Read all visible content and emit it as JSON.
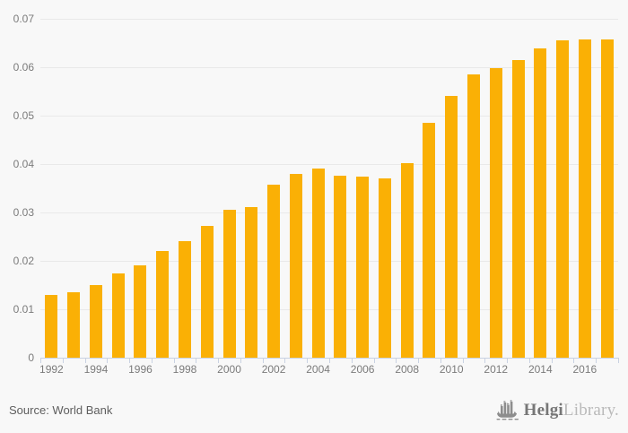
{
  "chart_data": {
    "type": "bar",
    "title": "",
    "categories": [
      "1992",
      "1993",
      "1994",
      "1995",
      "1996",
      "1997",
      "1998",
      "1999",
      "2000",
      "2001",
      "2002",
      "2003",
      "2004",
      "2005",
      "2006",
      "2007",
      "2008",
      "2009",
      "2010",
      "2011",
      "2012",
      "2013",
      "2014",
      "2015",
      "2016",
      "2017"
    ],
    "values": [
      0.013,
      0.0135,
      0.015,
      0.0175,
      0.019,
      0.022,
      0.024,
      0.0272,
      0.0305,
      0.0312,
      0.0358,
      0.038,
      0.039,
      0.0376,
      0.0374,
      0.0371,
      0.0402,
      0.0485,
      0.054,
      0.0585,
      0.0598,
      0.0615,
      0.0638,
      0.0655,
      0.0658,
      0.0658
    ],
    "xlabel": "",
    "ylabel": "",
    "ylim": [
      0,
      0.07
    ],
    "ytick_step": 0.01,
    "ytick_labels": [
      "0",
      "0.01",
      "0.02",
      "0.03",
      "0.04",
      "0.05",
      "0.06",
      "0.07"
    ],
    "xtick_labels": [
      "1992",
      "1994",
      "1996",
      "1998",
      "2000",
      "2002",
      "2004",
      "2006",
      "2008",
      "2010",
      "2012",
      "2014",
      "2016"
    ],
    "xtick_label_every": 2,
    "grid": true,
    "legend_position": "none",
    "bar_color": "#FAB005",
    "source": "World Bank"
  },
  "footer": {
    "source_label": "Source: World Bank",
    "brand_bold": "Helgi",
    "brand_light": "Library.",
    "brand_icon": "helgi-ship-icon"
  },
  "colors": {
    "background": "#F8F8F8",
    "bar": "#FAB005",
    "gridline": "#E9E9E9",
    "axis_line": "#C9D2E2",
    "tick_label": "#7B7B7B",
    "source_text": "#5E5E5E",
    "brand_bold_text": "#777777",
    "brand_light_text": "#B9B9B9",
    "brand_icon_gray": "#8D8D8D"
  }
}
